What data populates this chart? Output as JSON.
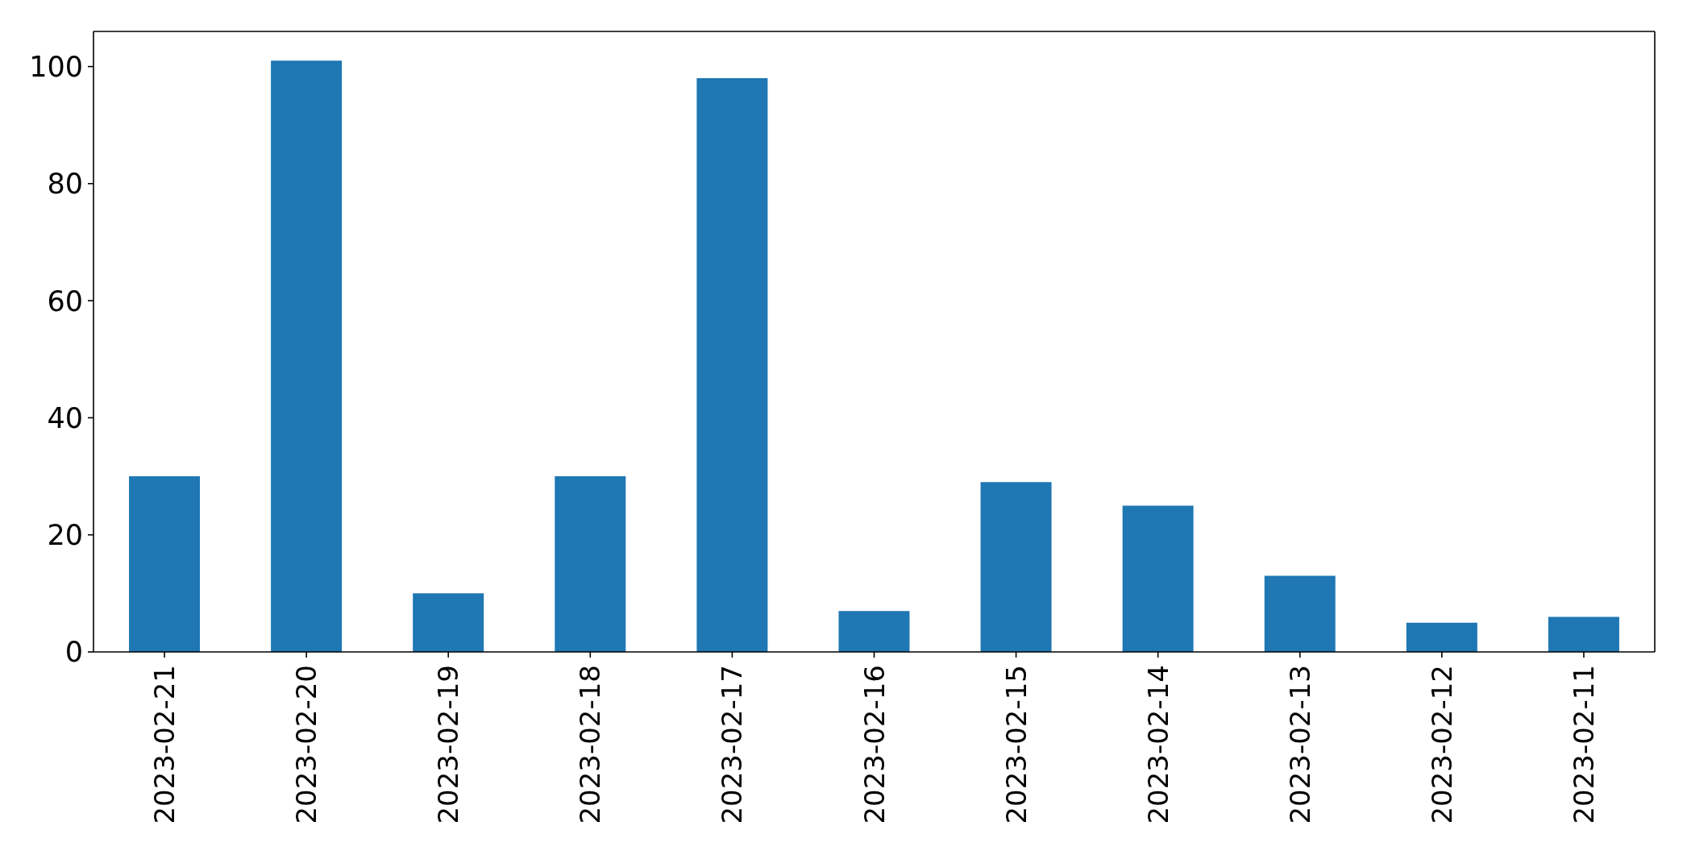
{
  "chart_data": {
    "type": "bar",
    "categories": [
      "2023-02-21",
      "2023-02-20",
      "2023-02-19",
      "2023-02-18",
      "2023-02-17",
      "2023-02-16",
      "2023-02-15",
      "2023-02-14",
      "2023-02-13",
      "2023-02-12",
      "2023-02-11"
    ],
    "values": [
      30,
      101,
      10,
      30,
      98,
      7,
      29,
      25,
      13,
      5,
      6
    ],
    "color": "#1f77b4",
    "ylim": [
      0,
      106
    ],
    "yticks": [
      0,
      20,
      40,
      60,
      80,
      100
    ]
  }
}
